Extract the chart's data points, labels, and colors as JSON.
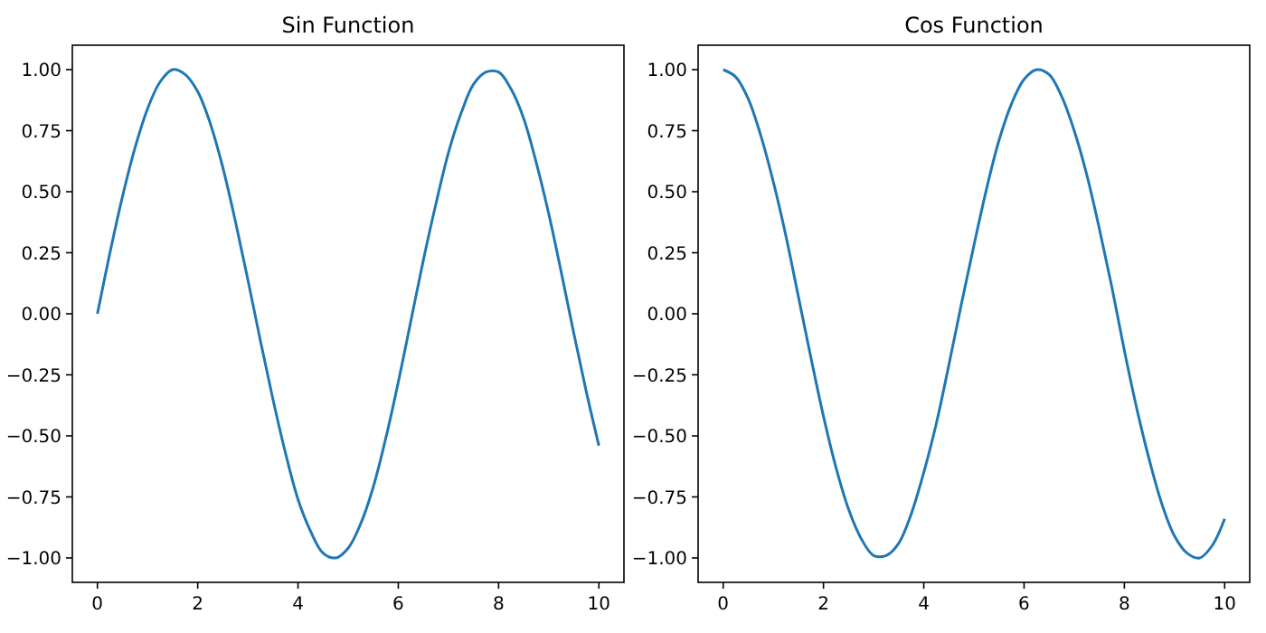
{
  "chart_data": [
    {
      "type": "line",
      "title": "Sin Function",
      "x": [
        0,
        0.25,
        0.5,
        0.75,
        1,
        1.25,
        1.5,
        1.75,
        2,
        2.25,
        2.5,
        2.75,
        3,
        3.25,
        3.5,
        3.75,
        4,
        4.25,
        4.5,
        4.75,
        5,
        5.25,
        5.5,
        5.75,
        6,
        6.25,
        6.5,
        6.75,
        7,
        7.25,
        7.5,
        7.75,
        8,
        8.25,
        8.5,
        8.75,
        9,
        9.25,
        9.5,
        9.75,
        10
      ],
      "series": [
        {
          "color": "#1f77b4",
          "values": [
            0,
            0.25,
            0.48,
            0.68,
            0.84,
            0.95,
            1.0,
            0.98,
            0.91,
            0.78,
            0.6,
            0.38,
            0.14,
            -0.11,
            -0.35,
            -0.57,
            -0.76,
            -0.89,
            -0.98,
            -1.0,
            -0.96,
            -0.86,
            -0.71,
            -0.51,
            -0.28,
            -0.03,
            0.22,
            0.45,
            0.66,
            0.82,
            0.94,
            0.99,
            0.99,
            0.92,
            0.8,
            0.62,
            0.41,
            0.17,
            -0.08,
            -0.32,
            -0.54
          ]
        }
      ],
      "xlim": [
        -0.5,
        10.5
      ],
      "xticks": [
        0,
        2,
        4,
        6,
        8,
        10
      ],
      "ylim": [
        -1.1,
        1.1
      ],
      "yticks": [
        {
          "value": -1,
          "label": "−1.00"
        },
        {
          "value": -0.75,
          "label": "−0.75"
        },
        {
          "value": -0.5,
          "label": "−0.50"
        },
        {
          "value": -0.25,
          "label": "−0.25"
        },
        {
          "value": 0,
          "label": "0.00"
        },
        {
          "value": 0.25,
          "label": "0.25"
        },
        {
          "value": 0.5,
          "label": "0.50"
        },
        {
          "value": 0.75,
          "label": "0.75"
        },
        {
          "value": 1,
          "label": "1.00"
        }
      ],
      "grid": false
    },
    {
      "type": "line",
      "title": "Cos Function",
      "x": [
        0,
        0.25,
        0.5,
        0.75,
        1,
        1.25,
        1.5,
        1.75,
        2,
        2.25,
        2.5,
        2.75,
        3,
        3.25,
        3.5,
        3.75,
        4,
        4.25,
        4.5,
        4.75,
        5,
        5.25,
        5.5,
        5.75,
        6,
        6.25,
        6.5,
        6.75,
        7,
        7.25,
        7.5,
        7.75,
        8,
        8.25,
        8.5,
        8.75,
        9,
        9.25,
        9.5,
        9.75,
        10
      ],
      "series": [
        {
          "color": "#1f77b4",
          "values": [
            1.0,
            0.97,
            0.88,
            0.73,
            0.54,
            0.32,
            0.07,
            -0.18,
            -0.42,
            -0.63,
            -0.8,
            -0.92,
            -0.99,
            -0.99,
            -0.94,
            -0.82,
            -0.65,
            -0.45,
            -0.21,
            0.04,
            0.28,
            0.51,
            0.71,
            0.86,
            0.96,
            1.0,
            0.98,
            0.89,
            0.75,
            0.57,
            0.35,
            0.11,
            -0.15,
            -0.39,
            -0.6,
            -0.78,
            -0.91,
            -0.98,
            -1.0,
            -0.95,
            -0.84
          ]
        }
      ],
      "xlim": [
        -0.5,
        10.5
      ],
      "xticks": [
        0,
        2,
        4,
        6,
        8,
        10
      ],
      "ylim": [
        -1.1,
        1.1
      ],
      "yticks": [
        {
          "value": -1,
          "label": "−1.00"
        },
        {
          "value": -0.75,
          "label": "−0.75"
        },
        {
          "value": -0.5,
          "label": "−0.50"
        },
        {
          "value": -0.25,
          "label": "−0.25"
        },
        {
          "value": 0,
          "label": "0.00"
        },
        {
          "value": 0.25,
          "label": "0.25"
        },
        {
          "value": 0.5,
          "label": "0.50"
        },
        {
          "value": 0.75,
          "label": "0.75"
        },
        {
          "value": 1,
          "label": "1.00"
        }
      ],
      "grid": false
    }
  ]
}
